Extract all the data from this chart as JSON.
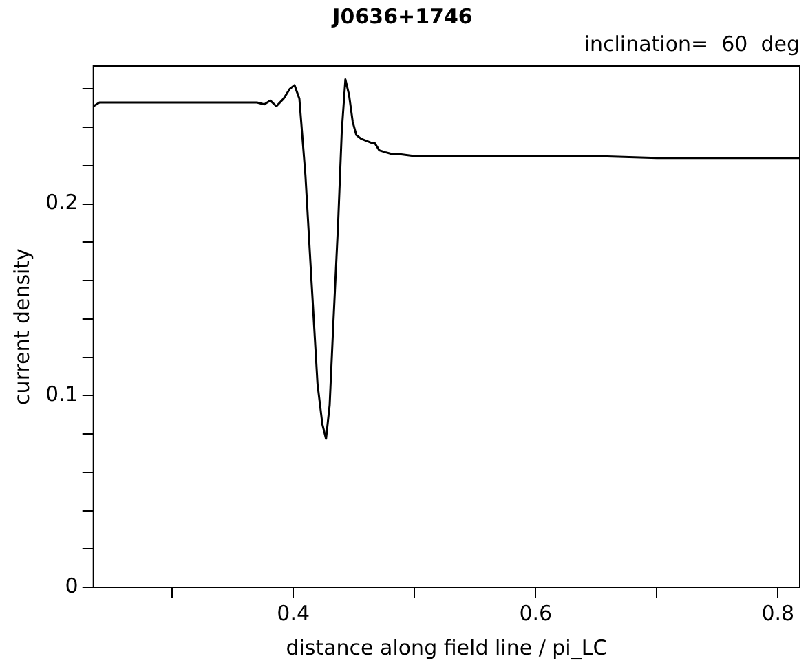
{
  "chart_data": {
    "type": "line",
    "title": "J0636+1746",
    "subtitle": "inclination=  60  deg",
    "xlabel": "distance along field line / pi_LC",
    "ylabel": "current density",
    "x": [
      0.235,
      0.24,
      0.26,
      0.3,
      0.34,
      0.37,
      0.376,
      0.381,
      0.386,
      0.392,
      0.397,
      0.401,
      0.405,
      0.41,
      0.415,
      0.42,
      0.424,
      0.427,
      0.43,
      0.433,
      0.437,
      0.44,
      0.443,
      0.446,
      0.449,
      0.452,
      0.456,
      0.46,
      0.464,
      0.467,
      0.471,
      0.476,
      0.482,
      0.488,
      0.5,
      0.52,
      0.56,
      0.6,
      0.65,
      0.7,
      0.75,
      0.8,
      0.818
    ],
    "series": [
      {
        "color": "#000000",
        "values": [
          0.251,
          0.253,
          0.253,
          0.253,
          0.253,
          0.253,
          0.252,
          0.254,
          0.251,
          0.255,
          0.26,
          0.262,
          0.255,
          0.215,
          0.16,
          0.106,
          0.085,
          0.0775,
          0.095,
          0.137,
          0.19,
          0.238,
          0.265,
          0.257,
          0.243,
          0.236,
          0.234,
          0.233,
          0.232,
          0.232,
          0.228,
          0.227,
          0.226,
          0.226,
          0.225,
          0.225,
          0.225,
          0.225,
          0.225,
          0.224,
          0.224,
          0.224,
          0.224
        ]
      }
    ],
    "xlim": [
      0.235,
      0.818
    ],
    "xticks": [
      {
        "value": 0.3,
        "label": null
      },
      0.4,
      {
        "value": 0.5,
        "label": null
      },
      0.6,
      {
        "value": 0.7,
        "label": null
      },
      0.8
    ],
    "ylim": [
      0,
      0.272
    ],
    "yticks": [
      0,
      {
        "value": 0.02,
        "label": null
      },
      {
        "value": 0.04,
        "label": null
      },
      {
        "value": 0.06,
        "label": null
      },
      {
        "value": 0.08,
        "label": null
      },
      0.1,
      {
        "value": 0.12,
        "label": null
      },
      {
        "value": 0.14,
        "label": null
      },
      {
        "value": 0.16,
        "label": null
      },
      {
        "value": 0.18,
        "label": null
      },
      0.2,
      {
        "value": 0.22,
        "label": null
      },
      {
        "value": 0.24,
        "label": null
      },
      {
        "value": 0.26,
        "label": null
      }
    ],
    "grid": false,
    "legend": false,
    "marker": "none",
    "line_style": "solid"
  }
}
